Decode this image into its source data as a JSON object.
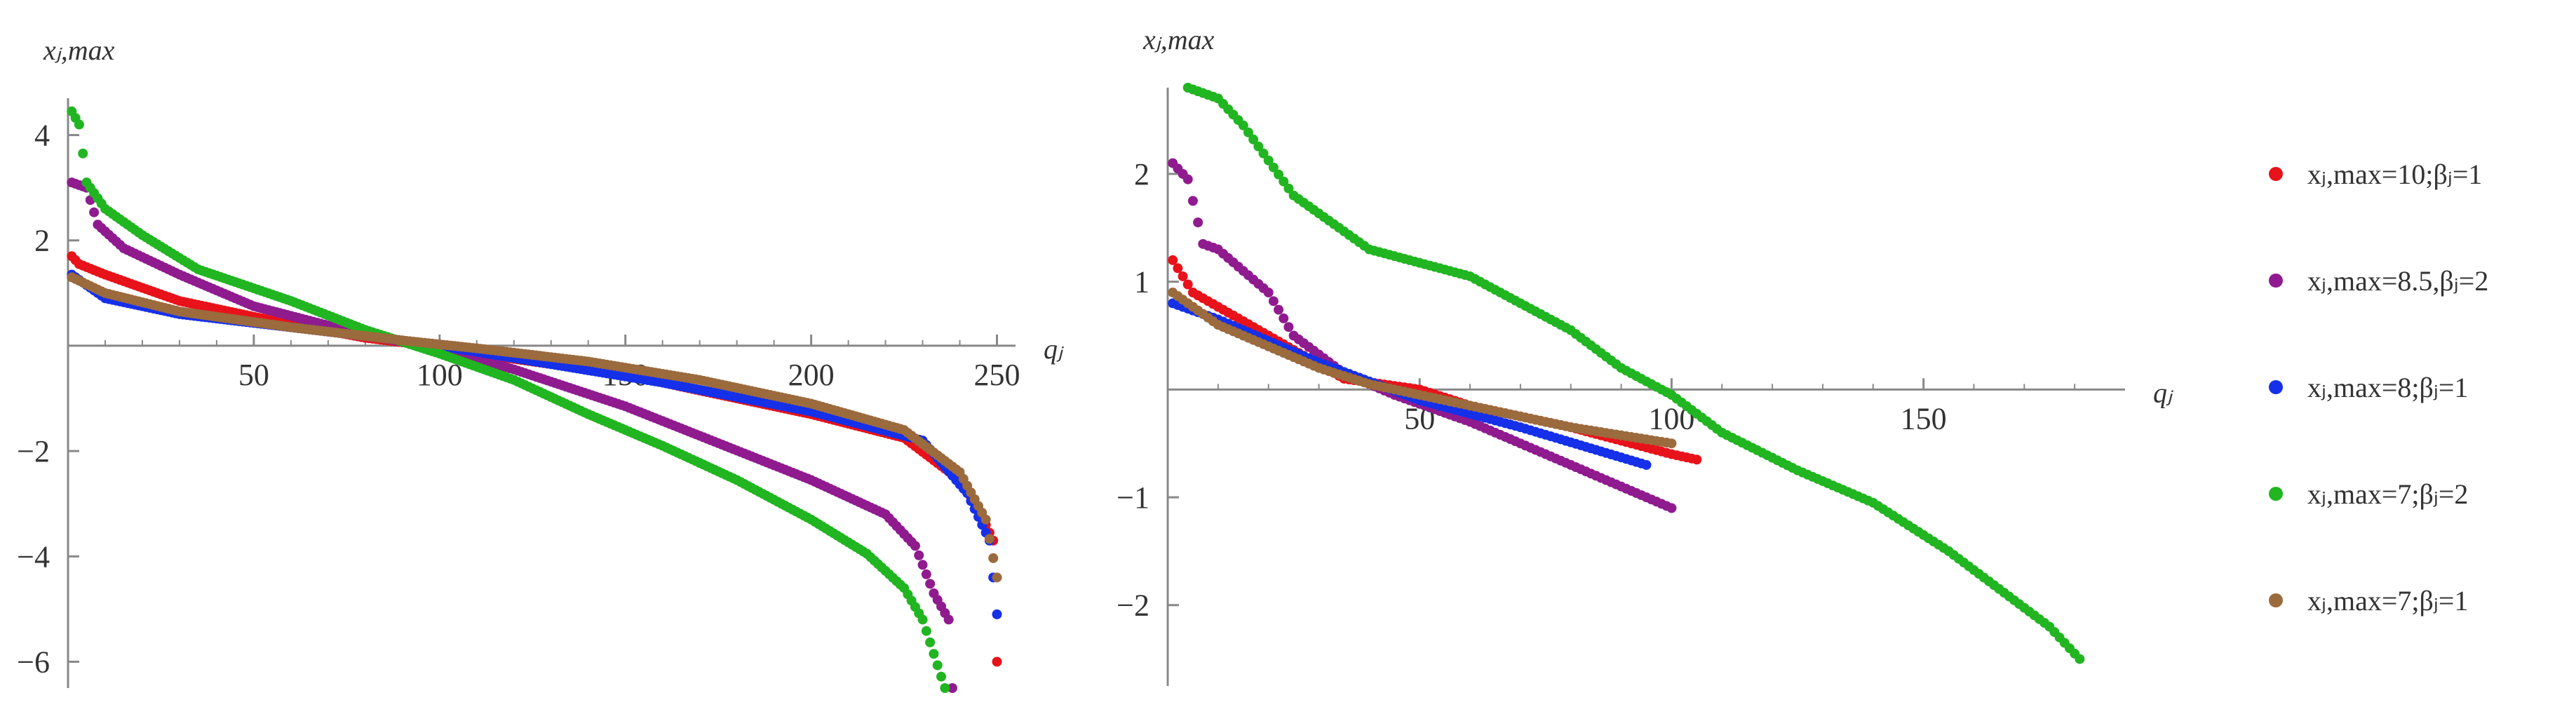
{
  "colors": {
    "red": "#e8121a",
    "purple": "#8f1b8f",
    "blue": "#1530e8",
    "green": "#21b521",
    "brown": "#9b6a3d",
    "axis": "#888888",
    "text": "#333333"
  },
  "legend": {
    "placement": "right",
    "entries": [
      {
        "label": "xⱼ,max=10;βⱼ=1",
        "color": "#e8121a"
      },
      {
        "label": "xⱼ,max=8.5,βⱼ=2",
        "color": "#8f1b8f"
      },
      {
        "label": "xⱼ,max=8;βⱼ=1",
        "color": "#1530e8"
      },
      {
        "label": "xⱼ,max=7;βⱼ=2",
        "color": "#21b521"
      },
      {
        "label": "xⱼ,max=7;βⱼ=1",
        "color": "#9b6a3d"
      }
    ]
  },
  "chart_data": [
    {
      "type": "scatter",
      "ylabel": "xⱼ,max",
      "xlabel": "qⱼ",
      "xlim": [
        0,
        255
      ],
      "ylim": [
        -6.5,
        4.7
      ],
      "xticks": [
        50,
        100,
        150,
        200,
        250
      ],
      "yticks": [
        4,
        2,
        -2,
        -4,
        -6
      ],
      "grid": false,
      "series": [
        {
          "name": "xⱼ,max=10;βⱼ=1",
          "color": "#e8121a",
          "n": 250,
          "x_start": 1,
          "anchors": [
            [
              1,
              1.7
            ],
            [
              3,
              1.55
            ],
            [
              10,
              1.35
            ],
            [
              30,
              0.85
            ],
            [
              50,
              0.55
            ],
            [
              80,
              0.15
            ],
            [
              100,
              -0.02
            ],
            [
              120,
              -0.25
            ],
            [
              150,
              -0.55
            ],
            [
              180,
              -1.0
            ],
            [
              200,
              -1.3
            ],
            [
              225,
              -1.75
            ],
            [
              240,
              -2.55
            ],
            [
              245,
              -3.1
            ],
            [
              249,
              -3.7
            ],
            [
              250,
              -6.0
            ]
          ]
        },
        {
          "name": "xⱼ,max=8.5,βⱼ=2",
          "color": "#8f1b8f",
          "n": 238,
          "x_start": 1,
          "anchors": [
            [
              1,
              3.1
            ],
            [
              5,
              3.0
            ],
            [
              8,
              2.3
            ],
            [
              15,
              1.85
            ],
            [
              30,
              1.35
            ],
            [
              50,
              0.75
            ],
            [
              80,
              0.2
            ],
            [
              100,
              -0.05
            ],
            [
              120,
              -0.45
            ],
            [
              150,
              -1.15
            ],
            [
              175,
              -1.85
            ],
            [
              200,
              -2.55
            ],
            [
              220,
              -3.2
            ],
            [
              228,
              -3.8
            ],
            [
              233,
              -4.7
            ],
            [
              237,
              -5.2
            ],
            [
              238,
              -6.5
            ]
          ]
        },
        {
          "name": "xⱼ,max=8;βⱼ=1",
          "color": "#1530e8",
          "n": 250,
          "x_start": 1,
          "anchors": [
            [
              1,
              1.35
            ],
            [
              10,
              0.9
            ],
            [
              30,
              0.6
            ],
            [
              60,
              0.35
            ],
            [
              90,
              0.1
            ],
            [
              100,
              0.0
            ],
            [
              130,
              -0.35
            ],
            [
              160,
              -0.7
            ],
            [
              200,
              -1.25
            ],
            [
              230,
              -1.8
            ],
            [
              242,
              -2.8
            ],
            [
              248,
              -3.7
            ],
            [
              250,
              -5.1
            ]
          ]
        },
        {
          "name": "xⱼ,max=7;βⱼ=2",
          "color": "#21b521",
          "n": 236,
          "x_start": 1,
          "anchors": [
            [
              1,
              4.45
            ],
            [
              3,
              4.2
            ],
            [
              5,
              3.1
            ],
            [
              10,
              2.6
            ],
            [
              20,
              2.1
            ],
            [
              35,
              1.45
            ],
            [
              60,
              0.85
            ],
            [
              80,
              0.3
            ],
            [
              100,
              -0.15
            ],
            [
              120,
              -0.65
            ],
            [
              140,
              -1.3
            ],
            [
              160,
              -1.9
            ],
            [
              180,
              -2.55
            ],
            [
              200,
              -3.3
            ],
            [
              215,
              -3.95
            ],
            [
              225,
              -4.6
            ],
            [
              230,
              -5.2
            ],
            [
              236,
              -6.5
            ]
          ]
        },
        {
          "name": "xⱼ,max=7;βⱼ=1",
          "color": "#9b6a3d",
          "n": 250,
          "x_start": 1,
          "anchors": [
            [
              1,
              1.3
            ],
            [
              10,
              1.0
            ],
            [
              30,
              0.65
            ],
            [
              60,
              0.35
            ],
            [
              90,
              0.1
            ],
            [
              110,
              -0.05
            ],
            [
              140,
              -0.3
            ],
            [
              170,
              -0.65
            ],
            [
              200,
              -1.1
            ],
            [
              225,
              -1.6
            ],
            [
              240,
              -2.4
            ],
            [
              247,
              -3.3
            ],
            [
              250,
              -4.4
            ]
          ]
        }
      ]
    },
    {
      "type": "scatter",
      "ylabel": "xⱼ,max",
      "xlabel": "qⱼ",
      "xlim": [
        0,
        190
      ],
      "ylim": [
        -2.75,
        2.8
      ],
      "xticks": [
        50,
        100,
        150
      ],
      "yticks": [
        2,
        1,
        -1,
        -2
      ],
      "grid": false,
      "series": [
        {
          "name": "xⱼ,max=10;βⱼ=1",
          "color": "#e8121a",
          "n": 105,
          "x_start": 1,
          "anchors": [
            [
              1,
              1.2
            ],
            [
              5,
              0.9
            ],
            [
              20,
              0.5
            ],
            [
              35,
              0.1
            ],
            [
              50,
              0.0
            ],
            [
              60,
              -0.15
            ],
            [
              80,
              -0.35
            ],
            [
              100,
              -0.6
            ],
            [
              105,
              -0.65
            ]
          ]
        },
        {
          "name": "xⱼ,max=8.5,βⱼ=2",
          "color": "#8f1b8f",
          "n": 100,
          "x_start": 1,
          "anchors": [
            [
              1,
              2.1
            ],
            [
              4,
              1.95
            ],
            [
              7,
              1.35
            ],
            [
              10,
              1.3
            ],
            [
              20,
              0.9
            ],
            [
              25,
              0.5
            ],
            [
              35,
              0.15
            ],
            [
              45,
              -0.05
            ],
            [
              60,
              -0.3
            ],
            [
              80,
              -0.7
            ],
            [
              100,
              -1.1
            ]
          ]
        },
        {
          "name": "xⱼ,max=8;βⱼ=1",
          "color": "#1530e8",
          "n": 95,
          "x_start": 1,
          "anchors": [
            [
              1,
              0.8
            ],
            [
              10,
              0.65
            ],
            [
              30,
              0.25
            ],
            [
              50,
              -0.1
            ],
            [
              70,
              -0.35
            ],
            [
              95,
              -0.7
            ]
          ]
        },
        {
          "name": "xⱼ,max=7;βⱼ=2",
          "color": "#21b521",
          "n": 178,
          "x_start": 4,
          "anchors": [
            [
              4,
              2.8
            ],
            [
              10,
              2.7
            ],
            [
              15,
              2.45
            ],
            [
              25,
              1.8
            ],
            [
              40,
              1.3
            ],
            [
              60,
              1.05
            ],
            [
              80,
              0.55
            ],
            [
              90,
              0.2
            ],
            [
              100,
              -0.05
            ],
            [
              110,
              -0.4
            ],
            [
              125,
              -0.75
            ],
            [
              140,
              -1.05
            ],
            [
              155,
              -1.5
            ],
            [
              165,
              -1.85
            ],
            [
              175,
              -2.2
            ],
            [
              182,
              -2.55
            ],
            [
              188,
              -2.75
            ]
          ]
        },
        {
          "name": "xⱼ,max=7;βⱼ=1",
          "color": "#9b6a3d",
          "n": 100,
          "x_start": 1,
          "anchors": [
            [
              1,
              0.9
            ],
            [
              10,
              0.6
            ],
            [
              30,
              0.2
            ],
            [
              40,
              0.05
            ],
            [
              60,
              -0.15
            ],
            [
              80,
              -0.35
            ],
            [
              100,
              -0.5
            ]
          ]
        }
      ]
    }
  ]
}
